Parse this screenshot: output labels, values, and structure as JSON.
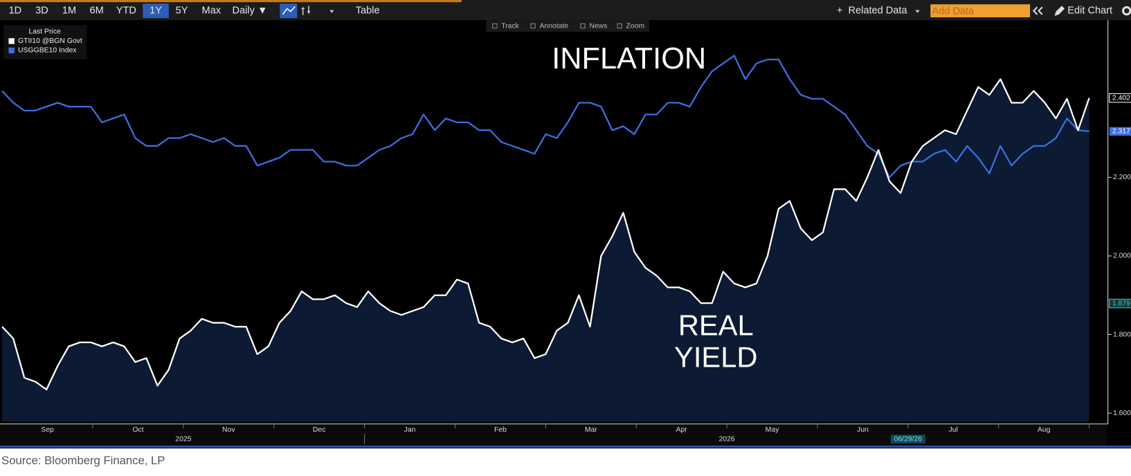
{
  "toolbar": {
    "ranges": [
      "1D",
      "3D",
      "1M",
      "6M",
      "YTD",
      "1Y",
      "5Y",
      "Max"
    ],
    "active_range": "1Y",
    "frequency": "Daily ▼",
    "table": "Table",
    "related": "Related Data",
    "add_data": "Add Data",
    "edit": "Edit Chart"
  },
  "chart_tools": [
    "Track",
    "Annotate",
    "News",
    "Zoom"
  ],
  "chart_data": {
    "type": "line",
    "legend_title": "Last Price",
    "legend": "upper left",
    "ylim": [
      1.578,
      2.6
    ],
    "yticks": [
      {
        "value": 1.6,
        "label": "1.600"
      },
      {
        "value": 1.8,
        "label": "1.800"
      },
      {
        "value": 2.0,
        "label": "2.000"
      },
      {
        "value": 2.2,
        "label": "2.200"
      }
    ],
    "months": [
      "Sep",
      "Oct",
      "Nov",
      "Dec",
      "Jan",
      "Feb",
      "Mar",
      "Apr",
      "May",
      "Jun",
      "Jul",
      "Aug"
    ],
    "years": [
      "2025",
      "2026"
    ],
    "date_flag": "06/29/26",
    "annotations": [
      "INFLATION",
      "REAL YIELD"
    ],
    "axis_markers": [
      {
        "value": 2.402,
        "label": "2.402",
        "color": "#ffffff"
      },
      {
        "value": 2.317,
        "label": "2.317",
        "color": "#3b6fe0"
      },
      {
        "value": 1.879,
        "label": "1.879",
        "color": "#4fc3c3"
      }
    ],
    "series": [
      {
        "name": "GTII10 @BGN Govt",
        "color": "#ffffff",
        "fill": "#0c1a33",
        "values": [
          1.82,
          1.79,
          1.69,
          1.68,
          1.66,
          1.72,
          1.77,
          1.78,
          1.78,
          1.77,
          1.78,
          1.77,
          1.73,
          1.74,
          1.67,
          1.71,
          1.79,
          1.81,
          1.84,
          1.83,
          1.83,
          1.82,
          1.82,
          1.75,
          1.77,
          1.83,
          1.86,
          1.91,
          1.89,
          1.89,
          1.9,
          1.88,
          1.87,
          1.91,
          1.88,
          1.86,
          1.85,
          1.86,
          1.87,
          1.9,
          1.9,
          1.94,
          1.93,
          1.83,
          1.82,
          1.79,
          1.78,
          1.79,
          1.74,
          1.75,
          1.81,
          1.83,
          1.9,
          1.82,
          2.0,
          2.05,
          2.11,
          2.01,
          1.97,
          1.95,
          1.92,
          1.92,
          1.91,
          1.88,
          1.88,
          1.96,
          1.93,
          1.92,
          1.93,
          2.0,
          2.12,
          2.14,
          2.07,
          2.04,
          2.06,
          2.17,
          2.17,
          2.14,
          2.2,
          2.27,
          2.19,
          2.16,
          2.24,
          2.28,
          2.3,
          2.32,
          2.31,
          2.37,
          2.43,
          2.41,
          2.45,
          2.39,
          2.39,
          2.42,
          2.39,
          2.35,
          2.4,
          2.32,
          2.402
        ]
      },
      {
        "name": "USGGBE10 Index",
        "color": "#3b6fe0",
        "values": [
          2.42,
          2.39,
          2.37,
          2.37,
          2.38,
          2.39,
          2.38,
          2.38,
          2.38,
          2.34,
          2.35,
          2.36,
          2.3,
          2.28,
          2.28,
          2.3,
          2.3,
          2.31,
          2.3,
          2.29,
          2.3,
          2.28,
          2.28,
          2.23,
          2.24,
          2.25,
          2.27,
          2.27,
          2.27,
          2.24,
          2.24,
          2.23,
          2.23,
          2.25,
          2.27,
          2.28,
          2.3,
          2.31,
          2.36,
          2.32,
          2.35,
          2.34,
          2.34,
          2.32,
          2.32,
          2.29,
          2.28,
          2.27,
          2.26,
          2.31,
          2.3,
          2.34,
          2.39,
          2.39,
          2.38,
          2.32,
          2.33,
          2.31,
          2.36,
          2.36,
          2.39,
          2.39,
          2.38,
          2.43,
          2.47,
          2.49,
          2.51,
          2.45,
          2.49,
          2.5,
          2.5,
          2.45,
          2.41,
          2.4,
          2.4,
          2.38,
          2.36,
          2.32,
          2.28,
          2.26,
          2.2,
          2.23,
          2.24,
          2.24,
          2.26,
          2.27,
          2.24,
          2.28,
          2.25,
          2.21,
          2.28,
          2.23,
          2.26,
          2.28,
          2.28,
          2.3,
          2.35,
          2.32,
          2.317
        ]
      }
    ]
  },
  "source": "Source: Bloomberg Finance, LP"
}
